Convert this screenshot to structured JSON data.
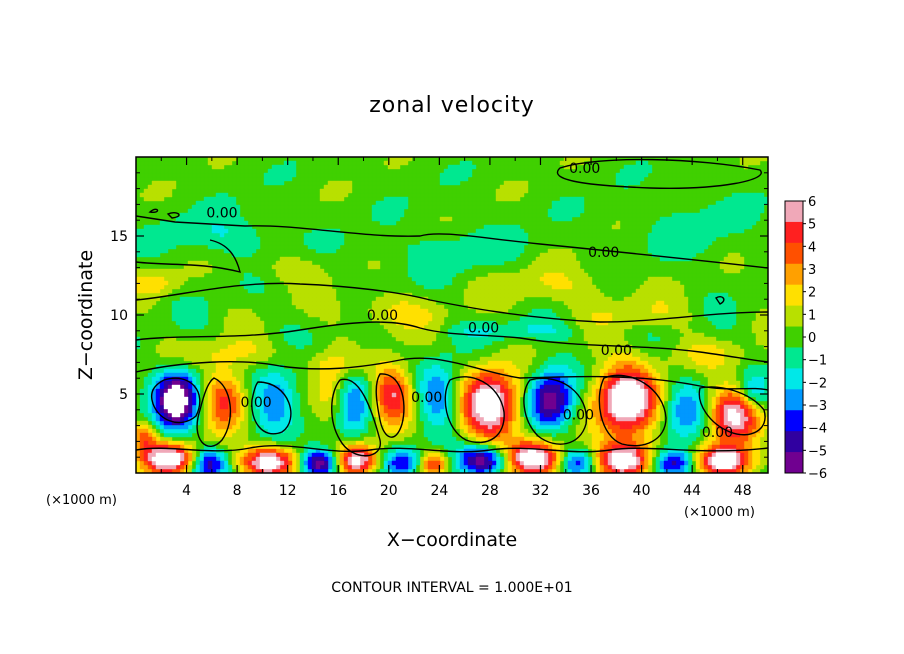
{
  "chart_data": {
    "type": "heatmap",
    "title": "zonal velocity",
    "xlabel": "X−coordinate",
    "ylabel": "Z−coordinate",
    "x_unit_left": "(×1000 m)",
    "x_unit_right": "(×1000 m)",
    "xlim": [
      0,
      50
    ],
    "ylim": [
      0,
      20
    ],
    "x_ticks": [
      4,
      8,
      12,
      16,
      20,
      24,
      28,
      32,
      36,
      40,
      44,
      48
    ],
    "x_tick_labels": [
      "4",
      "8",
      "12",
      "16",
      "20",
      "24",
      "28",
      "32",
      "36",
      "40",
      "44",
      "48"
    ],
    "y_ticks": [
      5,
      10,
      15
    ],
    "y_tick_labels": [
      "5",
      "10",
      "15"
    ],
    "colorbar": {
      "min": -6,
      "max": 6,
      "levels": [
        6,
        5,
        4,
        3,
        2,
        1,
        0,
        -1,
        -2,
        -3,
        -4,
        -5,
        -6
      ],
      "labels": [
        "6",
        "5",
        "4",
        "3",
        "2",
        "1",
        "0",
        "−1",
        "−2",
        "−3",
        "−4",
        "−5",
        "−6"
      ],
      "colors": [
        "#f0a8b8",
        "#ff2020",
        "#ff5000",
        "#ffa000",
        "#ffe000",
        "#b8e000",
        "#40d000",
        "#00e890",
        "#00e8e8",
        "#0098ff",
        "#0000ff",
        "#3000a0",
        "#700090"
      ]
    },
    "contour_labels": [
      {
        "text": "0.00",
        "x": 35.5,
        "z": 19.3
      },
      {
        "text": "0.00",
        "x": 6.8,
        "z": 16.5
      },
      {
        "text": "0.00",
        "x": 37.0,
        "z": 14.0
      },
      {
        "text": "0.00",
        "x": 19.5,
        "z": 10.0
      },
      {
        "text": "0.00",
        "x": 27.5,
        "z": 9.2
      },
      {
        "text": "0.00",
        "x": 38.0,
        "z": 7.8
      },
      {
        "text": "0.00",
        "x": 9.5,
        "z": 4.5
      },
      {
        "text": "0.00",
        "x": 23.0,
        "z": 4.8
      },
      {
        "text": "0.00",
        "x": 35.0,
        "z": 3.7
      },
      {
        "text": "0.00",
        "x": 46.0,
        "z": 2.6
      }
    ],
    "eddies": [
      {
        "x": 3.2,
        "z": 4.7,
        "v": -8,
        "rx": 1.7,
        "rz": 1.9
      },
      {
        "x": 7.0,
        "z": 4.7,
        "v": 5,
        "rx": 1.7,
        "rz": 1.9
      },
      {
        "x": 11.0,
        "z": 4.6,
        "v": -4,
        "rx": 1.8,
        "rz": 2.0
      },
      {
        "x": 15.6,
        "z": 4.8,
        "v": 3,
        "rx": 1.6,
        "rz": 2.0
      },
      {
        "x": 17.2,
        "z": 4.6,
        "v": -4,
        "rx": 1.6,
        "rz": 2.2
      },
      {
        "x": 20.3,
        "z": 5.0,
        "v": 6,
        "rx": 1.7,
        "rz": 1.8
      },
      {
        "x": 24.0,
        "z": 4.8,
        "v": -4,
        "rx": 1.7,
        "rz": 2.0
      },
      {
        "x": 28.0,
        "z": 4.2,
        "v": 8,
        "rx": 2.3,
        "rz": 2.3
      },
      {
        "x": 32.8,
        "z": 4.6,
        "v": -6,
        "rx": 1.8,
        "rz": 2.0
      },
      {
        "x": 38.8,
        "z": 4.6,
        "v": 8,
        "rx": 2.5,
        "rz": 2.3
      },
      {
        "x": 43.5,
        "z": 4.0,
        "v": -3,
        "rx": 1.8,
        "rz": 2.0
      },
      {
        "x": 47.3,
        "z": 3.7,
        "v": 7,
        "rx": 2.0,
        "rz": 1.7
      },
      {
        "x": 48.8,
        "z": 5.0,
        "v": -3,
        "rx": 1.2,
        "rz": 1.2
      },
      {
        "x": 2.6,
        "z": 0.9,
        "v": 8,
        "rx": 2.0,
        "rz": 1.0
      },
      {
        "x": 5.8,
        "z": 0.6,
        "v": -5,
        "rx": 1.4,
        "rz": 1.0
      },
      {
        "x": 10.5,
        "z": 0.7,
        "v": 8,
        "rx": 2.2,
        "rz": 1.0
      },
      {
        "x": 14.5,
        "z": 0.6,
        "v": -7,
        "rx": 1.5,
        "rz": 0.9
      },
      {
        "x": 17.5,
        "z": 0.8,
        "v": 7,
        "rx": 1.6,
        "rz": 1.0
      },
      {
        "x": 21.0,
        "z": 0.7,
        "v": -4,
        "rx": 1.6,
        "rz": 0.9
      },
      {
        "x": 23.5,
        "z": 0.6,
        "v": 5,
        "rx": 1.2,
        "rz": 0.8
      },
      {
        "x": 27.5,
        "z": 0.8,
        "v": -7,
        "rx": 2.0,
        "rz": 1.0
      },
      {
        "x": 31.5,
        "z": 0.9,
        "v": 8,
        "rx": 2.2,
        "rz": 1.1
      },
      {
        "x": 35.0,
        "z": 0.7,
        "v": -5,
        "rx": 1.5,
        "rz": 0.9
      },
      {
        "x": 38.5,
        "z": 0.8,
        "v": 8,
        "rx": 2.4,
        "rz": 1.1
      },
      {
        "x": 42.5,
        "z": 0.6,
        "v": -6,
        "rx": 1.8,
        "rz": 0.9
      },
      {
        "x": 46.5,
        "z": 0.7,
        "v": 8,
        "rx": 2.2,
        "rz": 1.0
      },
      {
        "x": 0.6,
        "z": 2.3,
        "v": 4,
        "rx": 1.0,
        "rz": 1.0
      },
      {
        "x": 1.5,
        "z": 12.0,
        "v": 1.8,
        "rx": 2.0,
        "rz": 0.8
      },
      {
        "x": 33.0,
        "z": 11.8,
        "v": 1.6,
        "rx": 5.0,
        "rz": 1.3
      },
      {
        "x": 20.0,
        "z": 10.2,
        "v": 1.8,
        "rx": 4.0,
        "rz": 1.2
      },
      {
        "x": 8.0,
        "z": 7.5,
        "v": 1.4,
        "rx": 6.0,
        "rz": 1.0
      },
      {
        "x": 30.0,
        "z": 9.0,
        "v": -1.5,
        "rx": 5.0,
        "rz": 0.6
      },
      {
        "x": 7.0,
        "z": 15.0,
        "v": -1.6,
        "rx": 4.0,
        "rz": 1.3
      },
      {
        "x": 25.0,
        "z": 14.0,
        "v": -1.0,
        "rx": 6.0,
        "rz": 1.5
      },
      {
        "x": 44.0,
        "z": 15.5,
        "v": -0.8,
        "rx": 5.0,
        "rz": 2.0
      },
      {
        "x": 12.0,
        "z": 13.0,
        "v": 1.2,
        "rx": 3.0,
        "rz": 1.0
      },
      {
        "x": 40.0,
        "z": 10.0,
        "v": 1.3,
        "rx": 4.0,
        "rz": 1.0
      },
      {
        "x": 45.0,
        "z": 7.5,
        "v": 1.2,
        "rx": 4.0,
        "rz": 1.0
      },
      {
        "x": 16.0,
        "z": 6.8,
        "v": 1.0,
        "rx": 3.0,
        "rz": 0.7
      }
    ],
    "footnote": "CONTOUR INTERVAL = 1.000E+01"
  }
}
